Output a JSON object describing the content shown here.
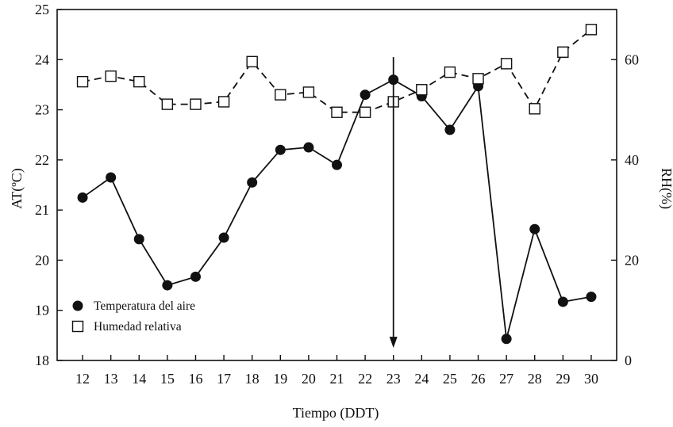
{
  "chart_data": {
    "type": "line",
    "xlabel": "Tiempo (DDT)",
    "ylabel": "AT(ºC)",
    "y2label": "RH(%)",
    "x": [
      12,
      13,
      14,
      15,
      16,
      17,
      18,
      19,
      20,
      21,
      22,
      23,
      24,
      25,
      26,
      27,
      28,
      29,
      30
    ],
    "xlim": [
      11.1,
      30.9
    ],
    "ylim": [
      18,
      25
    ],
    "y2lim": [
      0,
      70
    ],
    "yticks": [
      18,
      19,
      20,
      21,
      22,
      23,
      24,
      25
    ],
    "y2ticks": [
      0,
      20,
      40,
      60
    ],
    "grid": false,
    "legend": "bottom-left",
    "series": [
      {
        "name": "Temperatura del aire",
        "axis": "left",
        "line": "solid",
        "marker": "filled-circle",
        "color": "#111111",
        "values": [
          21.25,
          21.65,
          20.42,
          19.5,
          19.67,
          20.45,
          21.55,
          22.2,
          22.25,
          21.9,
          23.3,
          23.6,
          23.27,
          22.6,
          23.47,
          18.43,
          20.62,
          19.17,
          19.27
        ]
      },
      {
        "name": "Humedad relativa",
        "axis": "right",
        "line": "dashed",
        "marker": "open-square",
        "color": "#111111",
        "values": [
          55.6,
          56.7,
          55.6,
          51.1,
          51.1,
          51.6,
          59.6,
          53.0,
          53.5,
          49.5,
          49.5,
          51.6,
          54.0,
          57.5,
          56.2,
          59.2,
          50.2,
          61.5,
          66.0
        ]
      }
    ],
    "annotations": [
      {
        "type": "arrow-down",
        "x": 23,
        "y_top": 24.05,
        "y_bottom": 18.25
      }
    ]
  }
}
